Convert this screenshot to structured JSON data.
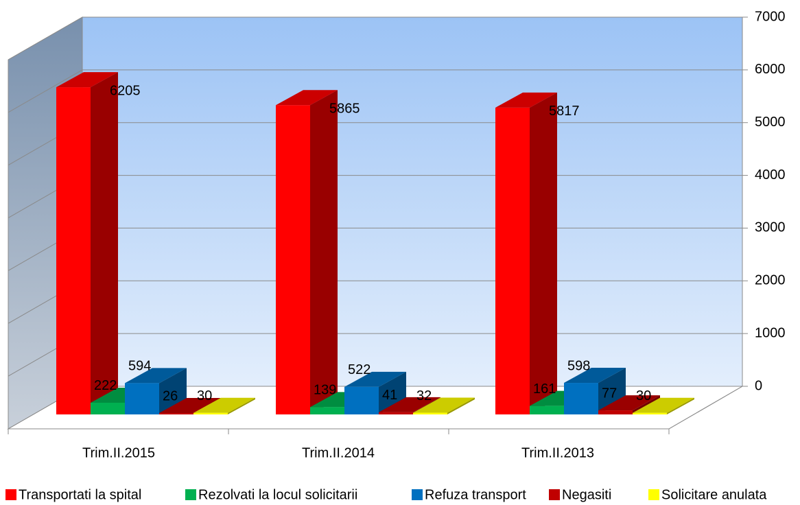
{
  "chart_data": {
    "type": "bar3d",
    "categories": [
      "Trim.II.2015",
      "Trim.II.2014",
      "Trim.II.2013"
    ],
    "series": [
      {
        "name": "Transportati la spital",
        "color": "#ff0000",
        "values": [
          6205,
          5865,
          5817
        ]
      },
      {
        "name": "Rezolvati la locul solicitarii",
        "color": "#00b050",
        "values": [
          222,
          139,
          161
        ]
      },
      {
        "name": "Refuza transport",
        "color": "#0070c0",
        "values": [
          594,
          522,
          598
        ]
      },
      {
        "name": "Negasiti",
        "color": "#c00000",
        "values": [
          26,
          41,
          77
        ]
      },
      {
        "name": "Solicitare anulata",
        "color": "#ffff00",
        "values": [
          30,
          32,
          30
        ]
      }
    ],
    "ylim": [
      0,
      7000
    ],
    "yticks": [
      0,
      1000,
      2000,
      3000,
      4000,
      5000,
      6000,
      7000
    ],
    "grid": true,
    "legend": "bottom"
  }
}
